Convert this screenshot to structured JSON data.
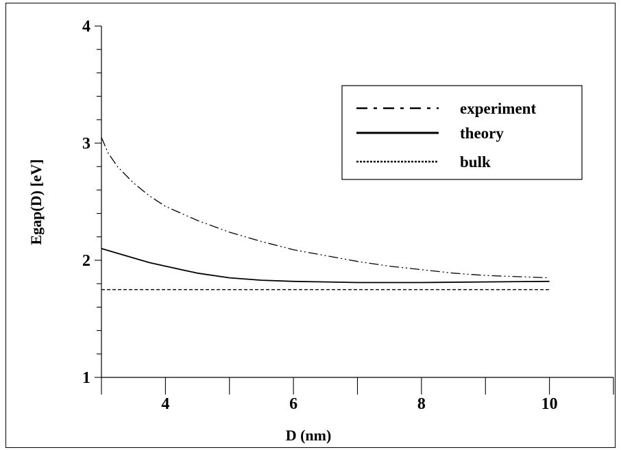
{
  "chart_data": {
    "type": "line",
    "title": "",
    "xlabel": "D (nm)",
    "ylabel": "Egap(D)  [eV]",
    "xlim": [
      3,
      11
    ],
    "ylim": [
      1,
      4
    ],
    "x_ticks": [
      4,
      6,
      8,
      10
    ],
    "y_ticks": [
      1,
      2,
      3,
      4
    ],
    "x_minor_step": 1,
    "y_minor_step": 0.2,
    "grid": false,
    "legend_position": "top-right",
    "series": [
      {
        "name": "experiment",
        "style": "dash-dot",
        "color": "#000000",
        "x": [
          3.0,
          3.1,
          3.25,
          3.5,
          3.75,
          4.0,
          4.25,
          4.5,
          5.0,
          5.5,
          6.0,
          6.5,
          7.0,
          7.5,
          8.0,
          8.5,
          9.0,
          9.5,
          10.0
        ],
        "y": [
          3.05,
          2.92,
          2.8,
          2.66,
          2.55,
          2.46,
          2.4,
          2.34,
          2.24,
          2.16,
          2.09,
          2.04,
          1.99,
          1.95,
          1.92,
          1.89,
          1.87,
          1.86,
          1.85
        ]
      },
      {
        "name": "theory",
        "style": "solid",
        "color": "#000000",
        "x": [
          3.0,
          3.25,
          3.5,
          3.75,
          4.0,
          4.25,
          4.5,
          5.0,
          5.5,
          6.0,
          6.5,
          7.0,
          8.0,
          9.0,
          10.0
        ],
        "y": [
          2.1,
          2.06,
          2.02,
          1.98,
          1.95,
          1.92,
          1.89,
          1.85,
          1.83,
          1.82,
          1.815,
          1.81,
          1.81,
          1.815,
          1.82
        ]
      },
      {
        "name": "bulk",
        "style": "dotted",
        "color": "#000000",
        "x": [
          3.0,
          10.0
        ],
        "y": [
          1.75,
          1.75
        ]
      }
    ]
  }
}
